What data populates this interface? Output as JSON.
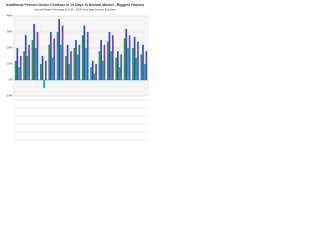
{
  "chart_data": {
    "type": "bar",
    "title": "Additional Percent Under Contract in 14 Days in Normal Market - Biggest Houses",
    "subtitle": "Normal Market is average of 2016 - 2019, from data for each Sub-Area",
    "categories": [
      null,
      null,
      null,
      null,
      null,
      null,
      null,
      null,
      null,
      null,
      null,
      null,
      null,
      null,
      null,
      null
    ],
    "series": [
      {
        "color": "#2e9e3a",
        "values": [
          12,
          18,
          25,
          10,
          22,
          30,
          15,
          20,
          28,
          8,
          18,
          24,
          14,
          26,
          20,
          16
        ]
      },
      {
        "color": "#1f4fd6",
        "values": [
          20,
          28,
          35,
          15,
          30,
          38,
          22,
          25,
          34,
          12,
          25,
          30,
          18,
          32,
          27,
          22
        ]
      },
      {
        "color": "#18a7b5",
        "values": [
          8,
          15,
          20,
          -5,
          14,
          22,
          10,
          16,
          20,
          4,
          12,
          18,
          8,
          20,
          14,
          10
        ]
      },
      {
        "color": "#7a3fb0",
        "values": [
          15,
          22,
          30,
          12,
          26,
          34,
          18,
          22,
          30,
          10,
          22,
          28,
          16,
          28,
          24,
          18
        ]
      }
    ],
    "ylim": [
      -10,
      40
    ],
    "yticks": [
      {
        "value": -10,
        "label": "-10%"
      },
      {
        "value": 0,
        "label": "0%"
      },
      {
        "value": 10,
        "label": "10%"
      },
      {
        "value": 20,
        "label": "20%"
      },
      {
        "value": 30,
        "label": "30%"
      },
      {
        "value": 40,
        "label": "40%"
      }
    ],
    "grid": true
  }
}
